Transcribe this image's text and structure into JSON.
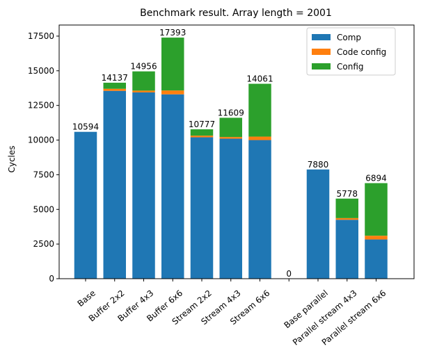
{
  "chart_data": {
    "type": "bar",
    "stacked": true,
    "title": "Benchmark result. Array length = 2001",
    "xlabel": "",
    "ylabel": "Cycles",
    "ylim": [
      0,
      18300
    ],
    "yticks": [
      0,
      2500,
      5000,
      7500,
      10000,
      12500,
      15000,
      17500
    ],
    "categories": [
      "Base",
      "Buffer 2x2",
      "Buffer 4x3",
      "Buffer 6x6",
      "Stream 2x2",
      "Stream 4x3",
      "Stream 6x6",
      "",
      "Base parallel",
      "Parallel stream 4x3",
      "Parallel stream 6x6"
    ],
    "series": [
      {
        "name": "Comp",
        "color": "#1f77b4",
        "values": [
          10594,
          13550,
          13440,
          13300,
          10200,
          10100,
          10000,
          0,
          7880,
          4250,
          2830
        ]
      },
      {
        "name": "Code config",
        "color": "#ff7f0e",
        "values": [
          0,
          150,
          130,
          280,
          120,
          120,
          250,
          0,
          0,
          120,
          270
        ]
      },
      {
        "name": "Config",
        "color": "#2ca02c",
        "values": [
          0,
          437,
          1386,
          3813,
          457,
          1389,
          3811,
          0,
          0,
          1408,
          3794
        ]
      }
    ],
    "totals": [
      "10594",
      "14137",
      "14956",
      "17393",
      "10777",
      "11609",
      "14061",
      "0",
      "7880",
      "5778",
      "6894"
    ],
    "legend": {
      "position": "upper-right",
      "entries": [
        "Comp",
        "Code config",
        "Config"
      ]
    },
    "grid": false
  }
}
